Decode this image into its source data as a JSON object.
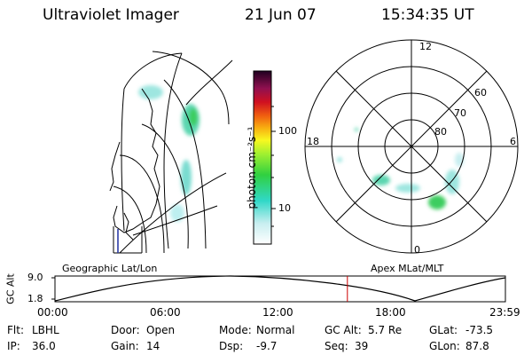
{
  "header": {
    "instrument": "Ultraviolet Imager",
    "date": "21 Jun 07",
    "time": "15:34:35 UT"
  },
  "colorbar": {
    "label": "photon cm⁻²s⁻¹",
    "ticks": [
      "100",
      "10"
    ]
  },
  "polar_plot": {
    "mlt_labels": {
      "top": "12",
      "left": "18",
      "right": "6",
      "bottom": "0"
    },
    "lat_labels": [
      "60",
      "70",
      "80"
    ]
  },
  "altitude_panel": {
    "left_title": "Geographic Lat/Lon",
    "right_title": "Apex MLat/MLT",
    "y_label": "GC Alt",
    "y_ticks": [
      "9.0",
      "1.8"
    ],
    "x_ticks": [
      "00:00",
      "06:00",
      "12:00",
      "18:00",
      "23:59"
    ],
    "cursor_time_hours": 15.58,
    "cursor_color": "#cc0000"
  },
  "info": {
    "row1": [
      {
        "label": "Flt:",
        "value": "LBHL"
      },
      {
        "label": "Door:",
        "value": "Open"
      },
      {
        "label": "Mode:",
        "value": "Normal"
      },
      {
        "label": "GC Alt:",
        "value": "5.7 Re"
      },
      {
        "label": "GLat:",
        "value": "-73.5"
      }
    ],
    "row2": [
      {
        "label": "IP:",
        "value": "36.0"
      },
      {
        "label": "Gain:",
        "value": "14"
      },
      {
        "label": "Dsp:",
        "value": "-9.7"
      },
      {
        "label": "Seq:",
        "value": "39"
      },
      {
        "label": "GLon:",
        "value": "87.8"
      }
    ]
  }
}
